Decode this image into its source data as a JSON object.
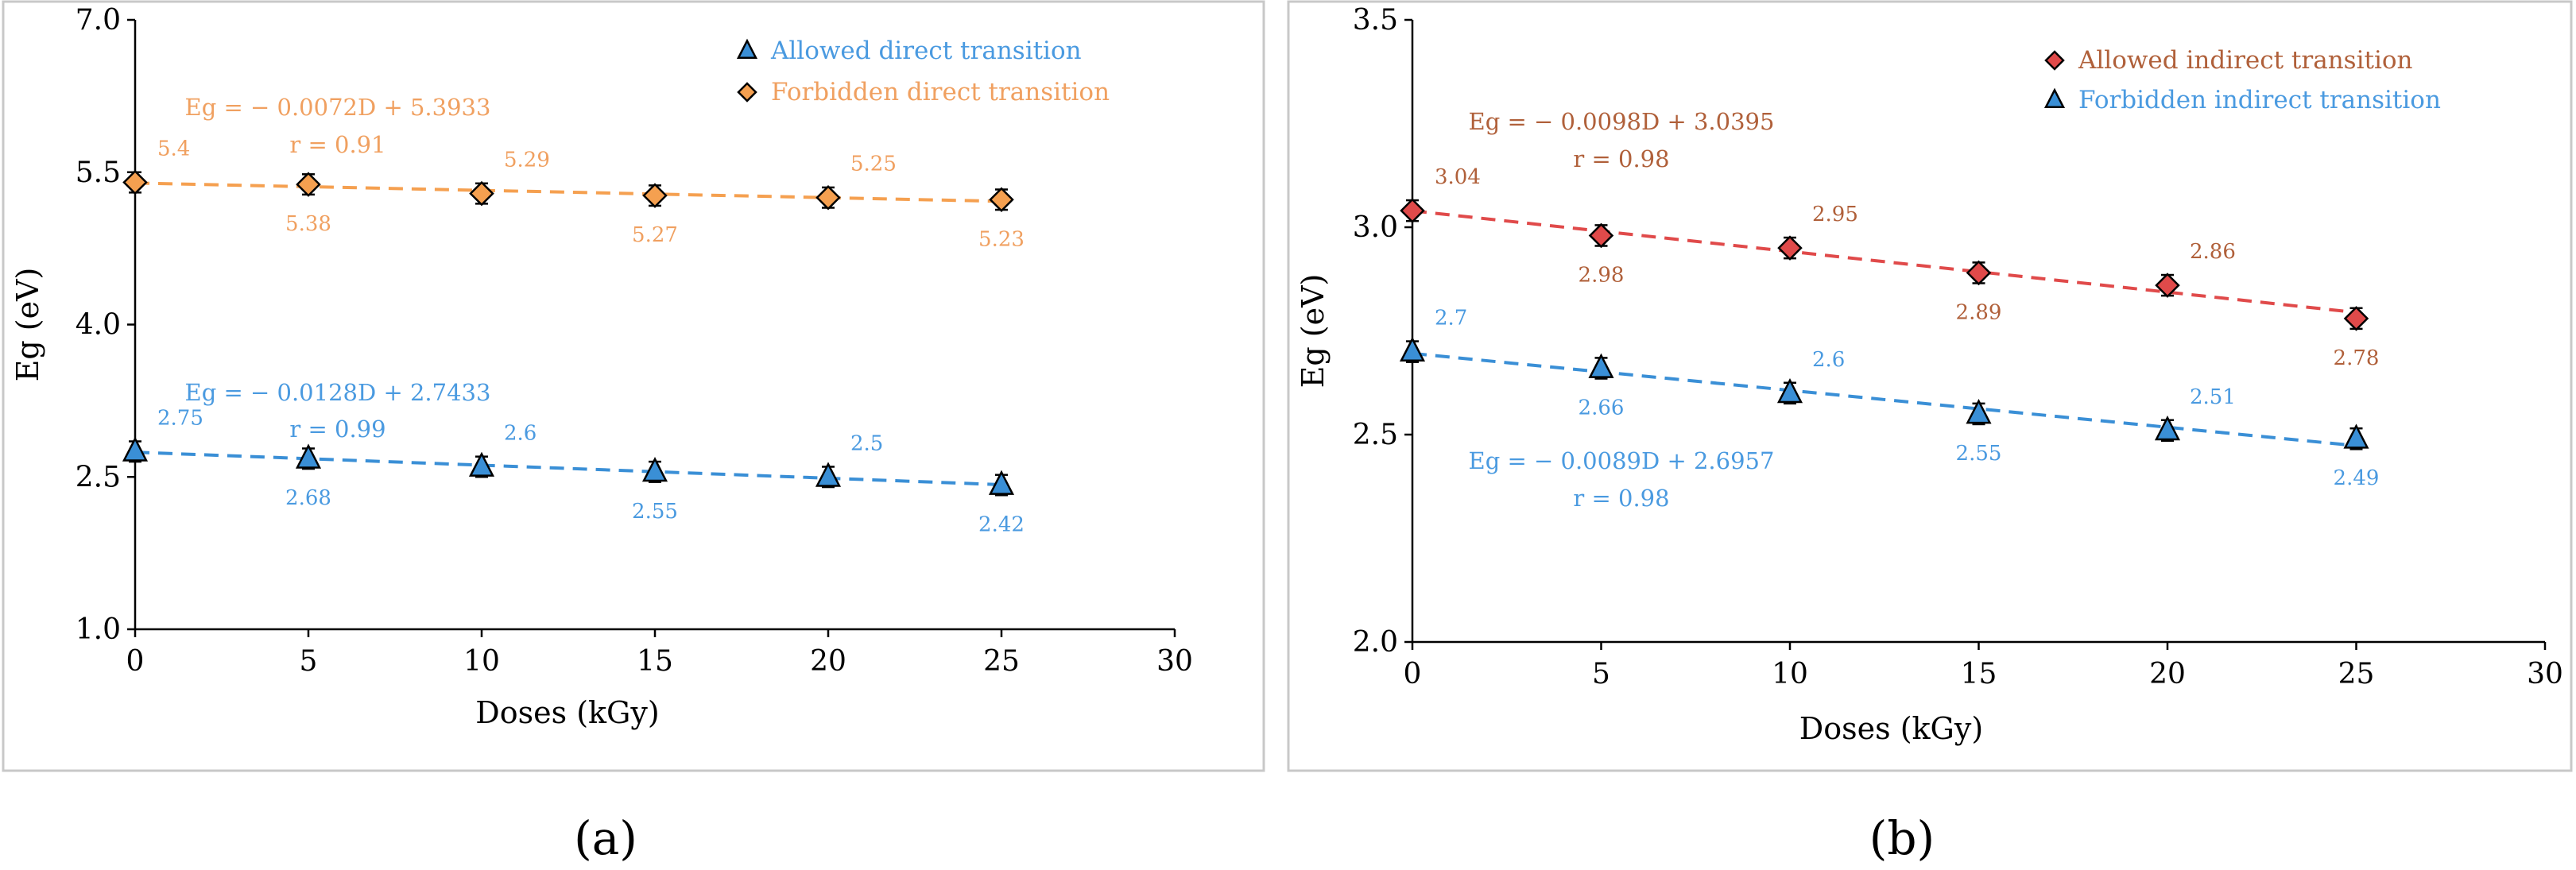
{
  "colors": {
    "orange": "#f5a050",
    "blue": "#3a8fd6",
    "red": "#e04a4a",
    "orange_label": "#f0a060",
    "blue_label": "#4a9ae0",
    "red_label": "#b0603a",
    "axis": "#000000",
    "frame": "#c8c8c8"
  },
  "chart_data": [
    {
      "type": "scatter",
      "panel_label": "(a)",
      "xlabel": "Doses (kGy)",
      "ylabel": "Eg (eV)",
      "xlim": [
        0,
        30
      ],
      "ylim": [
        1.0,
        7.0
      ],
      "xticks": [
        0,
        5,
        10,
        15,
        20,
        25,
        30
      ],
      "yticks": [
        1.0,
        2.5,
        4.0,
        5.5,
        7.0
      ],
      "ytick_labels": [
        "1.0",
        "2.5",
        "4.0",
        "5.5",
        "7.0"
      ],
      "xtick_labels": [
        "0",
        "5",
        "10",
        "15",
        "20",
        "25",
        "30"
      ],
      "legend_position": "top-right",
      "series": [
        {
          "name": "Allowed direct transition",
          "marker": "triangle",
          "color": "#3a8fd6",
          "label_color": "#4a9ae0",
          "x": [
            0,
            5,
            10,
            15,
            20,
            25
          ],
          "y": [
            2.75,
            2.68,
            2.6,
            2.55,
            2.5,
            2.42
          ],
          "error": [
            0.1,
            0.1,
            0.1,
            0.1,
            0.1,
            0.1
          ],
          "point_labels": [
            "2.75",
            "2.68",
            "2.6",
            "2.55",
            "2.5",
            "2.42"
          ],
          "label_side": [
            "above",
            "below",
            "above",
            "below",
            "above",
            "below"
          ],
          "fit": {
            "slope": -0.0128,
            "intercept": 2.7433
          },
          "equation": "Eg = − 0.0128D + 2.7433",
          "r_text": "r = 0.99"
        },
        {
          "name": "Forbidden direct transition",
          "marker": "diamond",
          "color": "#f5a050",
          "label_color": "#f0a060",
          "x": [
            0,
            5,
            10,
            15,
            20,
            25
          ],
          "y": [
            5.4,
            5.38,
            5.29,
            5.27,
            5.25,
            5.23
          ],
          "error": [
            0.1,
            0.1,
            0.1,
            0.1,
            0.1,
            0.1
          ],
          "point_labels": [
            "5.4",
            "5.38",
            "5.29",
            "5.27",
            "5.25",
            "5.23"
          ],
          "label_side": [
            "above",
            "below",
            "above",
            "below",
            "above",
            "below"
          ],
          "fit": {
            "slope": -0.0072,
            "intercept": 5.3933
          },
          "equation": "Eg = − 0.0072D + 5.3933",
          "r_text": "r = 0.91"
        }
      ]
    },
    {
      "type": "scatter",
      "panel_label": "(b)",
      "xlabel": "Doses (kGy)",
      "ylabel": "Eg (eV)",
      "xlim": [
        0,
        30
      ],
      "ylim": [
        2.0,
        3.5
      ],
      "xticks": [
        0,
        5,
        10,
        15,
        20,
        25,
        30
      ],
      "yticks": [
        2.0,
        2.5,
        3.0,
        3.5
      ],
      "ytick_labels": [
        "2.0",
        "2.5",
        "3.0",
        "3.5"
      ],
      "xtick_labels": [
        "0",
        "5",
        "10",
        "15",
        "20",
        "25",
        "30"
      ],
      "legend_position": "top-right",
      "series": [
        {
          "name": "Allowed indirect transition",
          "marker": "diamond",
          "color": "#e04a4a",
          "label_color": "#b0603a",
          "x": [
            0,
            5,
            10,
            15,
            20,
            25
          ],
          "y": [
            3.04,
            2.98,
            2.95,
            2.89,
            2.86,
            2.78
          ],
          "error": [
            0.025,
            0.025,
            0.025,
            0.025,
            0.025,
            0.025
          ],
          "point_labels": [
            "3.04",
            "2.98",
            "2.95",
            "2.89",
            "2.86",
            "2.78"
          ],
          "label_side": [
            "above",
            "below",
            "above",
            "below",
            "above",
            "below"
          ],
          "fit": {
            "slope": -0.0098,
            "intercept": 3.0395
          },
          "equation": "Eg = − 0.0098D + 3.0395",
          "r_text": "r = 0.98"
        },
        {
          "name": "Forbidden indirect transition",
          "marker": "triangle",
          "color": "#3a8fd6",
          "label_color": "#4a9ae0",
          "x": [
            0,
            5,
            10,
            15,
            20,
            25
          ],
          "y": [
            2.7,
            2.66,
            2.6,
            2.55,
            2.51,
            2.49
          ],
          "error": [
            0.025,
            0.025,
            0.025,
            0.025,
            0.025,
            0.025
          ],
          "point_labels": [
            "2.7",
            "2.66",
            "2.6",
            "2.55",
            "2.51",
            "2.49"
          ],
          "label_side": [
            "above",
            "below",
            "above",
            "below",
            "above",
            "below"
          ],
          "fit": {
            "slope": -0.0089,
            "intercept": 2.6957
          },
          "equation": "Eg = − 0.0089D + 2.6957",
          "r_text": "r = 0.98"
        }
      ]
    }
  ]
}
